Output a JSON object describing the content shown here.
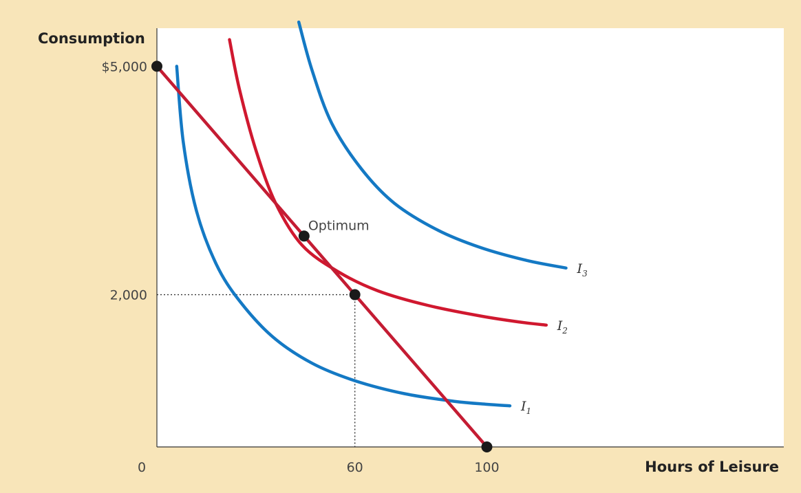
{
  "chart_data": {
    "type": "line",
    "title": "",
    "xlabel": "Hours of Leisure",
    "ylabel": "Consumption",
    "xlim": [
      0,
      190
    ],
    "ylim": [
      0,
      5500
    ],
    "x_ticks": [
      {
        "value": 0,
        "label": "0"
      },
      {
        "value": 60,
        "label": "60"
      },
      {
        "value": 100,
        "label": "100"
      }
    ],
    "y_ticks": [
      {
        "value": 5000,
        "label": "$5,000"
      },
      {
        "value": 2000,
        "label": "2,000"
      }
    ],
    "grid": false,
    "background_color": "#f8e5b9",
    "plot_background_color": "#ffffff",
    "series": [
      {
        "label": "I",
        "label_sub": "1",
        "color": "#1479c4",
        "points": [
          [
            6,
            5000
          ],
          [
            8,
            4000
          ],
          [
            12,
            3100
          ],
          [
            18,
            2400
          ],
          [
            25,
            1920
          ],
          [
            35,
            1450
          ],
          [
            47,
            1100
          ],
          [
            60,
            870
          ],
          [
            75,
            700
          ],
          [
            90,
            600
          ],
          [
            100,
            560
          ],
          [
            107,
            540
          ]
        ]
      },
      {
        "label": "I",
        "label_sub": "2",
        "color": "#d0182f",
        "points": [
          [
            22,
            5350
          ],
          [
            25,
            4700
          ],
          [
            30,
            3900
          ],
          [
            36,
            3200
          ],
          [
            44,
            2650
          ],
          [
            55,
            2300
          ],
          [
            67,
            2050
          ],
          [
            82,
            1860
          ],
          [
            98,
            1720
          ],
          [
            110,
            1640
          ],
          [
            118,
            1600
          ]
        ]
      },
      {
        "label": "I",
        "label_sub": "3",
        "color": "#1479c4",
        "points": [
          [
            43,
            5580
          ],
          [
            47,
            4950
          ],
          [
            53,
            4250
          ],
          [
            62,
            3650
          ],
          [
            72,
            3200
          ],
          [
            85,
            2850
          ],
          [
            98,
            2620
          ],
          [
            112,
            2450
          ],
          [
            124,
            2350
          ]
        ]
      }
    ],
    "budget_line": {
      "color": "#c41c33",
      "points": [
        [
          0,
          5000
        ],
        [
          100,
          0
        ]
      ]
    },
    "points_of_interest": [
      {
        "x": 0,
        "y": 5000,
        "label": ""
      },
      {
        "x": 44.6,
        "y": 2770,
        "label": "Optimum"
      },
      {
        "x": 60,
        "y": 2000,
        "label": ""
      },
      {
        "x": 100,
        "y": 0,
        "label": ""
      }
    ],
    "guides": [
      {
        "x": 60,
        "y": 2000
      }
    ]
  }
}
